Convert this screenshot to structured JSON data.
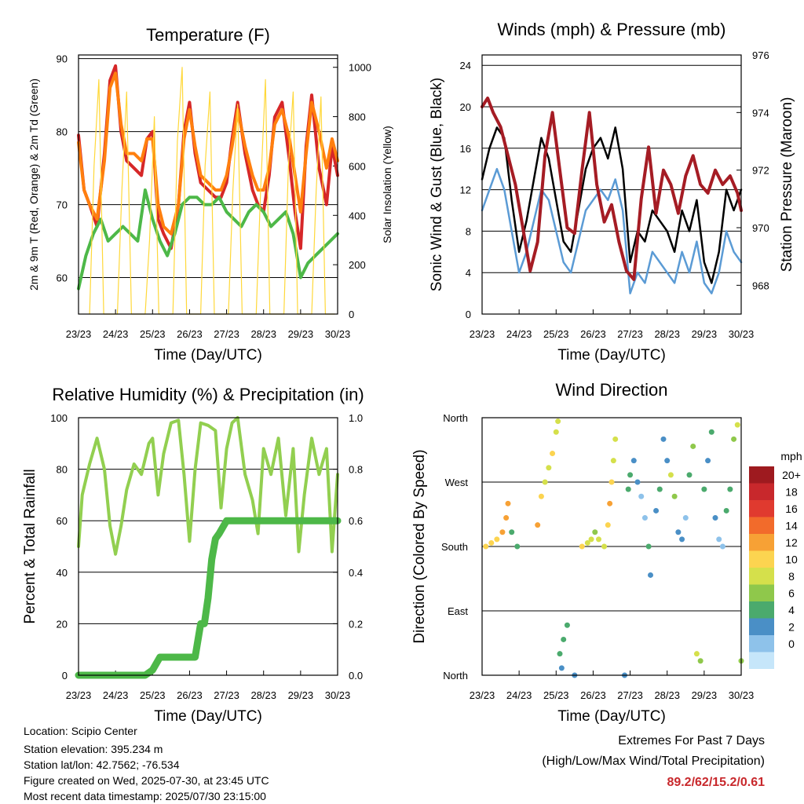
{
  "chart_data": [
    {
      "type": "line",
      "title": "Temperature (F)",
      "xlabel": "Time (Day/UTC)",
      "ylabel": "2m & 9m T (Red, Orange) & 2m Td (Green)",
      "y2label": "Solar Insolation (Yellow)",
      "x_ticks": [
        "23/23",
        "24/23",
        "25/23",
        "26/23",
        "27/23",
        "28/23",
        "29/23",
        "30/23"
      ],
      "ylim": [
        55,
        90.5
      ],
      "y_ticks": [
        60,
        70,
        80,
        90
      ],
      "y2lim": [
        0,
        1050
      ],
      "y2_ticks": [
        0,
        200,
        400,
        600,
        800,
        1000
      ],
      "grid": "horizontal",
      "series": [
        {
          "color": "#d62728",
          "axis": "left",
          "x": [
            0,
            0.15,
            0.3,
            0.5,
            0.7,
            0.85,
            1.0,
            1.15,
            1.3,
            1.5,
            1.7,
            1.85,
            2.0,
            2.15,
            2.3,
            2.5,
            2.7,
            2.85,
            3.0,
            3.15,
            3.3,
            3.5,
            3.7,
            3.85,
            4.0,
            4.15,
            4.3,
            4.5,
            4.7,
            4.85,
            5.0,
            5.15,
            5.3,
            5.5,
            5.7,
            5.85,
            6.0,
            6.15,
            6.3,
            6.5,
            6.7,
            6.85,
            7.0
          ],
          "y": [
            79.5,
            72,
            70,
            67,
            77,
            87,
            89,
            80,
            76,
            75,
            74,
            79,
            80,
            68,
            66,
            64,
            70,
            80,
            84,
            77,
            73,
            72,
            71,
            71,
            73,
            79,
            84,
            77,
            72,
            70,
            69,
            74,
            82,
            84,
            76,
            69,
            64,
            78,
            85,
            75,
            70,
            78,
            74
          ]
        },
        {
          "color": "#ff7f0e",
          "axis": "left",
          "x": [
            0,
            0.15,
            0.3,
            0.5,
            0.7,
            0.85,
            1.0,
            1.15,
            1.3,
            1.5,
            1.7,
            1.85,
            2.0,
            2.15,
            2.3,
            2.5,
            2.7,
            2.85,
            3.0,
            3.15,
            3.3,
            3.5,
            3.7,
            3.85,
            4.0,
            4.15,
            4.3,
            4.5,
            4.7,
            4.85,
            5.0,
            5.15,
            5.3,
            5.5,
            5.7,
            5.85,
            6.0,
            6.15,
            6.3,
            6.5,
            6.7,
            6.85,
            7.0
          ],
          "y": [
            78.5,
            72,
            70,
            68,
            76,
            86,
            88,
            81,
            77,
            77,
            76,
            79,
            79,
            70,
            67,
            66,
            70,
            79,
            83,
            78,
            74,
            73,
            72,
            72,
            74,
            78,
            83,
            78,
            74,
            72,
            72,
            75,
            81,
            83,
            79,
            74,
            69,
            77,
            84,
            80,
            75,
            79,
            76
          ]
        },
        {
          "color": "#4db848",
          "axis": "left",
          "x": [
            0,
            0.2,
            0.4,
            0.6,
            0.8,
            1.0,
            1.2,
            1.4,
            1.6,
            1.8,
            2.0,
            2.2,
            2.4,
            2.6,
            2.8,
            3.0,
            3.2,
            3.4,
            3.6,
            3.8,
            4.0,
            4.2,
            4.4,
            4.6,
            4.8,
            5.0,
            5.2,
            5.4,
            5.6,
            5.8,
            6.0,
            6.2,
            6.4,
            6.6,
            6.8,
            7.0
          ],
          "y": [
            58.5,
            63,
            66,
            68,
            65,
            66,
            67,
            66,
            65,
            72,
            68,
            65,
            63,
            66,
            70,
            71,
            71,
            70,
            70,
            71,
            69,
            68,
            67,
            69,
            70,
            69,
            67,
            68,
            69,
            66,
            60,
            62,
            63,
            64,
            65,
            66
          ]
        },
        {
          "color": "#ffd83a",
          "axis": "right",
          "x": [
            0.3,
            0.42,
            0.55,
            0.68,
            0.8,
            0.92,
            1.05,
            1.17,
            1.3,
            1.43,
            1.55,
            1.67,
            1.8,
            1.92,
            2.05,
            2.17,
            2.3,
            2.42,
            2.55,
            2.67,
            2.8,
            2.92,
            3.05,
            3.17,
            3.3,
            3.42,
            3.55,
            3.67,
            3.8,
            3.92,
            4.05,
            4.17,
            4.3,
            4.42,
            4.55,
            4.67,
            4.8,
            4.92,
            5.05,
            5.17,
            5.3,
            5.42,
            5.55,
            5.67,
            5.8,
            5.92,
            6.05,
            6.17,
            6.3,
            6.42,
            6.55,
            6.67,
            6.8,
            6.92
          ],
          "y": [
            0,
            600,
            950,
            0,
            0,
            0,
            0,
            500,
            900,
            0,
            0,
            0,
            0,
            300,
            800,
            0,
            0,
            0,
            0,
            700,
            1000,
            0,
            0,
            0,
            0,
            600,
            900,
            0,
            0,
            0,
            0,
            500,
            850,
            0,
            0,
            0,
            0,
            500,
            950,
            0,
            0,
            0,
            0,
            600,
            900,
            0,
            0,
            0,
            0,
            500,
            880,
            0,
            0,
            0
          ]
        }
      ]
    },
    {
      "type": "line",
      "title": "Winds (mph) & Pressure (mb)",
      "xlabel": "Time (Day/UTC)",
      "ylabel": "Sonic Wind & Gust (Blue, Black)",
      "y2label": "Station Pressure (Maroon)",
      "x_ticks": [
        "23/23",
        "24/23",
        "25/23",
        "26/23",
        "27/23",
        "28/23",
        "29/23",
        "30/23"
      ],
      "ylim": [
        0,
        25
      ],
      "y_ticks": [
        0,
        4,
        8,
        12,
        16,
        20,
        24
      ],
      "y2lim": [
        967,
        976
      ],
      "y2_ticks": [
        968,
        970,
        972,
        974,
        976
      ],
      "grid": "horizontal",
      "series": [
        {
          "color": "#5b9bd5",
          "axis": "left",
          "x": [
            0,
            0.2,
            0.4,
            0.6,
            0.8,
            1.0,
            1.2,
            1.4,
            1.6,
            1.8,
            2.0,
            2.2,
            2.4,
            2.6,
            2.8,
            3.0,
            3.2,
            3.4,
            3.6,
            3.8,
            4.0,
            4.2,
            4.4,
            4.6,
            4.8,
            5.0,
            5.2,
            5.4,
            5.6,
            5.8,
            6.0,
            6.2,
            6.4,
            6.6,
            6.8,
            7.0
          ],
          "y": [
            10,
            12,
            14,
            12,
            8,
            4,
            6,
            9,
            12,
            11,
            8,
            5,
            4,
            7,
            10,
            11,
            12,
            11,
            13,
            10,
            2,
            4,
            3,
            6,
            5,
            4,
            3,
            6,
            4,
            7,
            3,
            2,
            4,
            8,
            6,
            5
          ]
        },
        {
          "color": "#000000",
          "axis": "left",
          "x": [
            0,
            0.2,
            0.4,
            0.6,
            0.8,
            1.0,
            1.2,
            1.4,
            1.6,
            1.8,
            2.0,
            2.2,
            2.4,
            2.6,
            2.8,
            3.0,
            3.2,
            3.4,
            3.6,
            3.8,
            4.0,
            4.2,
            4.4,
            4.6,
            4.8,
            5.0,
            5.2,
            5.4,
            5.6,
            5.8,
            6.0,
            6.2,
            6.4,
            6.6,
            6.8,
            7.0
          ],
          "y": [
            13,
            16,
            18,
            17,
            11,
            6,
            9,
            13,
            17,
            15,
            11,
            7,
            6,
            10,
            14,
            16,
            17,
            15,
            18,
            14,
            5,
            8,
            7,
            10,
            9,
            8,
            6,
            10,
            8,
            11,
            5,
            3,
            6,
            12,
            10,
            12
          ]
        },
        {
          "color": "#a51c24",
          "axis": "right",
          "x": [
            0,
            0.15,
            0.3,
            0.5,
            0.7,
            0.9,
            1.1,
            1.3,
            1.5,
            1.7,
            1.9,
            2.1,
            2.3,
            2.5,
            2.7,
            2.9,
            3.1,
            3.3,
            3.5,
            3.7,
            3.9,
            4.1,
            4.3,
            4.5,
            4.7,
            4.9,
            5.1,
            5.3,
            5.5,
            5.7,
            5.9,
            6.1,
            6.3,
            6.5,
            6.7,
            6.9,
            7.0
          ],
          "y": [
            974.2,
            974.5,
            974,
            973.5,
            972.5,
            971.5,
            970,
            968.5,
            969.5,
            972.5,
            974,
            972,
            970,
            969.8,
            972,
            974,
            971.5,
            970.2,
            970.8,
            969.5,
            968.5,
            968.2,
            971,
            972.8,
            970.5,
            972,
            971.5,
            970.5,
            971.8,
            972.5,
            971.5,
            971.2,
            972,
            971.5,
            971.8,
            971.2,
            970.6
          ]
        }
      ]
    },
    {
      "type": "line",
      "title": "Relative Humidity (%) & Precipitation (in)",
      "xlabel": "Time (Day/UTC)",
      "ylabel": "Percent & Total Rainfall",
      "x_ticks": [
        "23/23",
        "24/23",
        "25/23",
        "26/23",
        "27/23",
        "28/23",
        "29/23",
        "30/23"
      ],
      "ylim": [
        0,
        100
      ],
      "y_ticks": [
        0,
        20,
        40,
        60,
        80,
        100
      ],
      "y2lim": [
        0,
        1.0
      ],
      "y2_ticks": [
        "0.0",
        "0.2",
        "0.4",
        "0.6",
        "0.8",
        "1.0"
      ],
      "grid": "horizontal",
      "series": [
        {
          "color": "#92cf50",
          "axis": "left",
          "x": [
            0,
            0.1,
            0.3,
            0.5,
            0.7,
            0.85,
            1.0,
            1.15,
            1.3,
            1.5,
            1.7,
            1.9,
            2.0,
            2.15,
            2.3,
            2.5,
            2.7,
            2.85,
            3.0,
            3.15,
            3.3,
            3.5,
            3.7,
            3.85,
            4.0,
            4.15,
            4.3,
            4.5,
            4.7,
            4.85,
            5.0,
            5.2,
            5.4,
            5.6,
            5.8,
            5.95,
            6.1,
            6.3,
            6.5,
            6.7,
            6.85,
            7.0
          ],
          "y": [
            50,
            70,
            82,
            92,
            80,
            58,
            47,
            58,
            72,
            82,
            78,
            90,
            92,
            70,
            86,
            98,
            99,
            78,
            52,
            80,
            98,
            97,
            95,
            65,
            88,
            98,
            100,
            78,
            68,
            55,
            88,
            78,
            92,
            62,
            88,
            48,
            70,
            92,
            78,
            88,
            48,
            78
          ]
        },
        {
          "color": "#4db848",
          "axis": "right",
          "x": [
            0,
            0.5,
            1.0,
            1.5,
            1.8,
            2.0,
            2.2,
            2.6,
            3.0,
            3.15,
            3.3,
            3.4,
            3.5,
            3.6,
            3.7,
            3.8,
            4.0,
            4.5,
            5.0,
            6.0,
            7.0
          ],
          "y": [
            0,
            0,
            0,
            0,
            0,
            0.02,
            0.07,
            0.07,
            0.07,
            0.07,
            0.2,
            0.2,
            0.3,
            0.45,
            0.53,
            0.55,
            0.6,
            0.6,
            0.6,
            0.6,
            0.6
          ]
        }
      ]
    },
    {
      "type": "scatter",
      "title": "Wind Direction",
      "xlabel": "Time (Day/UTC)",
      "ylabel": "Direction (Colored By Speed)",
      "x_ticks": [
        "23/23",
        "24/23",
        "25/23",
        "26/23",
        "27/23",
        "28/23",
        "29/23",
        "30/23"
      ],
      "y_ticks": [
        "North",
        "East",
        "South",
        "West",
        "North"
      ],
      "ylim": [
        0,
        360
      ],
      "grid": "horizontal",
      "legend_title": "mph",
      "legend_labels": [
        "20+",
        "18",
        "16",
        "14",
        "12",
        "10",
        "8",
        "6",
        "4",
        "2",
        "0"
      ],
      "legend_colors": [
        "#9e1a1f",
        "#c8282c",
        "#e03a2f",
        "#f26b2b",
        "#f7a135",
        "#fcd450",
        "#d5e04b",
        "#8fc84b",
        "#4baa6d",
        "#4a8fc6",
        "#8ec2ea",
        "#c6e6fa"
      ],
      "x": [
        0.1,
        0.25,
        0.4,
        0.55,
        0.65,
        0.7,
        0.8,
        0.95,
        1.5,
        1.6,
        1.7,
        1.8,
        1.9,
        2.0,
        2.05,
        2.1,
        2.15,
        2.2,
        2.3,
        2.5,
        2.7,
        2.85,
        2.95,
        3.05,
        3.15,
        3.3,
        3.4,
        3.45,
        3.5,
        3.55,
        3.6,
        3.85,
        3.95,
        4.0,
        4.1,
        4.2,
        4.3,
        4.4,
        4.5,
        4.55,
        4.7,
        4.8,
        4.9,
        5.0,
        5.1,
        5.2,
        5.3,
        5.4,
        5.5,
        5.6,
        5.7,
        5.8,
        5.9,
        6.0,
        6.1,
        6.2,
        6.3,
        6.4,
        6.5,
        6.6,
        6.7,
        6.8,
        6.9,
        7.0
      ],
      "y": [
        180,
        185,
        190,
        200,
        220,
        240,
        200,
        180,
        210,
        250,
        270,
        290,
        310,
        340,
        355,
        30,
        10,
        50,
        70,
        0,
        180,
        185,
        190,
        200,
        190,
        180,
        210,
        240,
        270,
        300,
        330,
        0,
        260,
        280,
        300,
        270,
        250,
        220,
        180,
        140,
        230,
        260,
        330,
        300,
        280,
        250,
        200,
        190,
        220,
        280,
        320,
        30,
        20,
        260,
        300,
        340,
        220,
        190,
        180,
        230,
        260,
        330,
        350,
        20
      ],
      "speed": [
        12,
        11,
        12,
        13,
        14,
        14,
        6,
        5,
        13,
        12,
        10,
        10,
        12,
        10,
        10,
        6,
        4,
        5,
        5,
        4,
        11,
        10,
        9,
        8,
        9,
        10,
        12,
        13,
        12,
        10,
        10,
        4,
        6,
        5,
        4,
        4,
        2,
        2,
        5,
        3,
        4,
        6,
        3,
        3,
        9,
        8,
        4,
        3,
        2,
        6,
        8,
        10,
        7,
        5,
        4,
        6,
        3,
        2,
        2,
        5,
        6,
        8,
        9,
        7
      ]
    }
  ],
  "info": {
    "location": "Location: Scipio Center",
    "elevation": "Station elevation: 395.234 m",
    "latlon": "Station lat/lon: 42.7562; -76.534",
    "created": "Figure created on Wed, 2025-07-30, at 23:45 UTC",
    "recent": "Most recent data timestamp: 2025/07/30 23:15:00"
  },
  "extremes": {
    "title": "Extremes For Past 7 Days",
    "subtitle": "(High/Low/Max Wind/Total Precipitation)",
    "values": "89.2/62/15.2/0.61"
  }
}
